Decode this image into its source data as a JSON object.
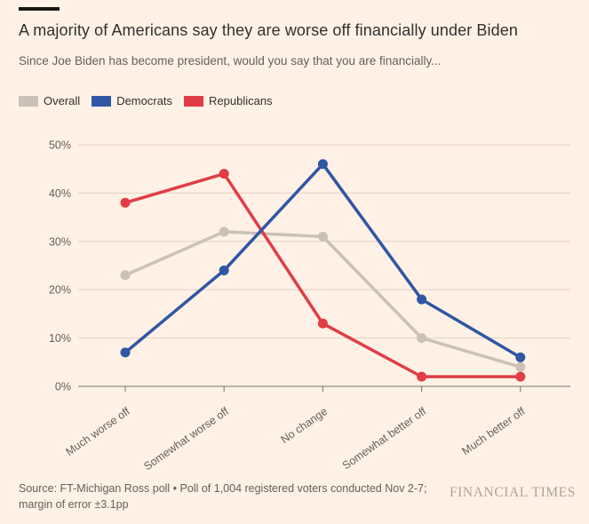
{
  "header": {
    "title": "A majority of Americans say they are worse off financially under Biden",
    "subtitle": "Since Joe Biden has become president, would you say that you are financially..."
  },
  "chart_data": {
    "type": "line",
    "categories": [
      "Much worse off",
      "Somewhat worse off",
      "No change",
      "Somewhat better off",
      "Much better off"
    ],
    "series": [
      {
        "name": "Overall",
        "color": "#ccc1b7",
        "values": [
          23,
          32,
          31,
          10,
          4
        ]
      },
      {
        "name": "Democrats",
        "color": "#3056a4",
        "values": [
          7,
          24,
          46,
          18,
          6
        ]
      },
      {
        "name": "Republicans",
        "color": "#e03d46",
        "values": [
          38,
          44,
          13,
          2,
          2
        ]
      }
    ],
    "ylim": [
      0,
      50
    ],
    "yticks": [
      0,
      10,
      20,
      30,
      40,
      50
    ],
    "ytick_suffix": "%",
    "grid": true,
    "legend_position": "top-left",
    "marker": "circle"
  },
  "footer": {
    "source": "Source: FT-Michigan Ross poll • Poll of 1,004 registered voters conducted Nov 2-7; margin of error ±3.1pp",
    "brand": "FINANCIAL TIMES"
  },
  "colors": {
    "background": "#fff1e5",
    "title_text": "#33302e",
    "secondary_text": "#66605b",
    "gridline": "#e0d2c4",
    "axis": "#7a7265",
    "accent_bar": "#1a1817",
    "brand_text": "#b0a396"
  }
}
